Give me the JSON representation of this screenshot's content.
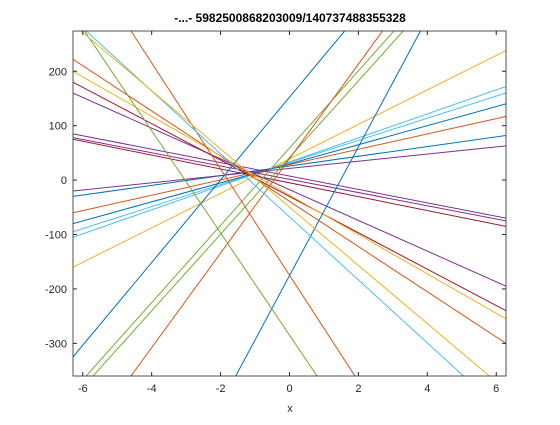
{
  "chart_data": {
    "type": "line",
    "title": "-...- 5982500868203009/140737488355328",
    "x_label": "x",
    "xlim": [
      -6.2832,
      6.2832
    ],
    "ylim": [
      -360,
      274
    ],
    "xticks": [
      -6,
      -4,
      -2,
      0,
      2,
      4,
      6
    ],
    "yticks": [
      -300,
      -200,
      -100,
      0,
      100,
      200
    ],
    "series": [
      {
        "color": "#EDB120",
        "x": [
          -6.2832,
          6.2832
        ],
        "values": [
          -160,
          238
        ]
      },
      {
        "color": "#4DBEEE",
        "x": [
          -6.2832,
          6.2832
        ],
        "values": [
          -105,
          172
        ]
      },
      {
        "color": "#4DBEEE",
        "x": [
          -6.2832,
          6.2832
        ],
        "values": [
          -95,
          160
        ]
      },
      {
        "color": "#0072BD",
        "x": [
          -6.2832,
          6.2832
        ],
        "values": [
          -80,
          140
        ]
      },
      {
        "color": "#D95319",
        "x": [
          -6.2832,
          6.2832
        ],
        "values": [
          -60,
          117
        ]
      },
      {
        "color": "#0072BD",
        "x": [
          -6.2832,
          6.2832
        ],
        "values": [
          -30,
          82
        ]
      },
      {
        "color": "#7E2F8E",
        "x": [
          -6.2832,
          6.2832
        ],
        "values": [
          -20,
          63
        ]
      },
      {
        "color": "#7E2F8E",
        "x": [
          -6.2832,
          6.2832
        ],
        "values": [
          85,
          -70
        ]
      },
      {
        "color": "#7E2F8E",
        "x": [
          -6.2832,
          6.2832
        ],
        "values": [
          78,
          -75
        ]
      },
      {
        "color": "#A2142F",
        "x": [
          -6.2832,
          6.2832
        ],
        "values": [
          75,
          -85
        ]
      },
      {
        "color": "#7E2F8E",
        "x": [
          -6.2832,
          6.2832
        ],
        "values": [
          160,
          -195
        ]
      },
      {
        "color": "#A2142F",
        "x": [
          -6.2832,
          6.2832
        ],
        "values": [
          180,
          -240
        ]
      },
      {
        "color": "#D95319",
        "x": [
          -6.2832,
          6.2832
        ],
        "values": [
          222,
          -300
        ]
      },
      {
        "color": "#EDB120",
        "x": [
          -6.2832,
          6.2832
        ],
        "values": [
          200,
          -255
        ]
      },
      {
        "color": "#0072BD",
        "x": [
          -1.56,
          3.8
        ],
        "values": [
          -360,
          274
        ]
      },
      {
        "color": "#0072BD",
        "x": [
          -6.2832,
          1.6
        ],
        "values": [
          -325,
          274
        ]
      },
      {
        "color": "#77AC30",
        "x": [
          -5.9,
          3.03
        ],
        "values": [
          -360,
          274
        ]
      },
      {
        "color": "#77AC30",
        "x": [
          -5.7,
          3.3
        ],
        "values": [
          -360,
          274
        ]
      },
      {
        "color": "#D95319",
        "x": [
          -4.6,
          2.7
        ],
        "values": [
          -360,
          274
        ]
      },
      {
        "color": "#D95319",
        "x": [
          -4.6,
          1.9
        ],
        "values": [
          274,
          -360
        ]
      },
      {
        "color": "#77AC30",
        "x": [
          -5.95,
          0.8
        ],
        "values": [
          274,
          -360
        ]
      },
      {
        "color": "#4DBEEE",
        "x": [
          -5.9,
          5.05
        ],
        "values": [
          274,
          -360
        ]
      },
      {
        "color": "#EDB120",
        "x": [
          -6.05,
          5.8
        ],
        "values": [
          274,
          -360
        ]
      }
    ]
  }
}
